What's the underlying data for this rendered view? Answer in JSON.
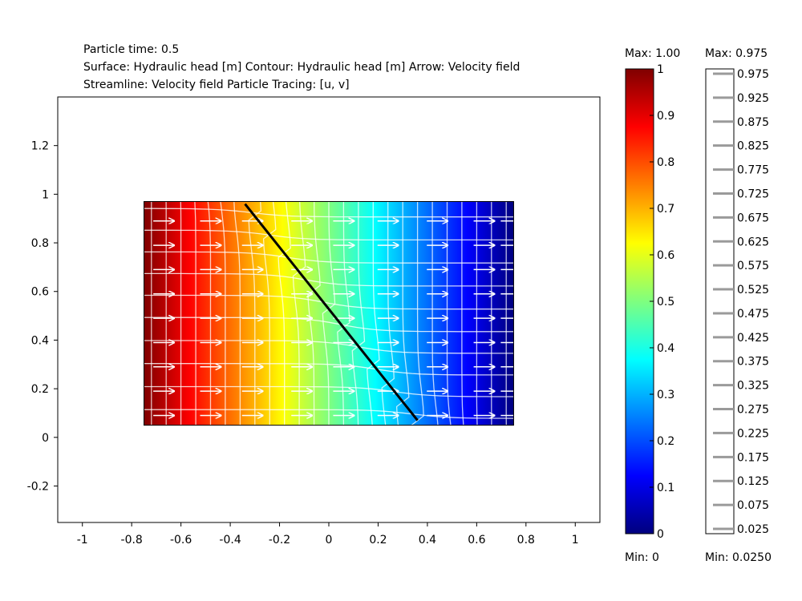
{
  "header": {
    "line1": "Particle time: 0.5",
    "line2": "Surface: Hydraulic head [m]   Contour: Hydraulic head [m]   Arrow: Velocity field",
    "line3": "Streamline: Velocity field   Particle Tracing: [u, v]"
  },
  "chart_data": {
    "type": "heatmap",
    "description_fields": [
      "Particle time: 0.5"
    ],
    "xlim": [
      -1.1,
      1.1
    ],
    "ylim": [
      -0.35,
      1.4
    ],
    "x_ticks": [
      -1,
      -0.8,
      -0.6,
      -0.4,
      -0.2,
      0,
      0.2,
      0.4,
      0.6,
      0.8,
      1
    ],
    "x_tick_labels": [
      "-1",
      "-0.8",
      "-0.6",
      "-0.4",
      "-0.2",
      "0",
      "0.2",
      "0.4",
      "0.6",
      "0.8",
      "1"
    ],
    "y_ticks": [
      -0.2,
      0,
      0.2,
      0.4,
      0.6,
      0.8,
      1,
      1.2
    ],
    "y_tick_labels": [
      "-0.2",
      "0",
      "0.2",
      "0.4",
      "0.6",
      "0.8",
      "1",
      "1.2"
    ],
    "domain": {
      "x": [
        -0.75,
        0.75
      ],
      "y": [
        0.05,
        0.97
      ]
    },
    "surface_field": "Hydraulic head [m]",
    "surface_range": [
      0,
      1
    ],
    "fault_line": {
      "x": [
        -0.34,
        0.36
      ],
      "y": [
        0.96,
        0.07
      ]
    },
    "arrow_grid": {
      "x": [
        -0.67,
        -0.48,
        -0.31,
        -0.11,
        0.06,
        0.24,
        0.44,
        0.63,
        0.74
      ],
      "y": [
        0.09,
        0.19,
        0.29,
        0.39,
        0.49,
        0.59,
        0.69,
        0.79,
        0.89
      ]
    },
    "surface_colorbar": {
      "max_label": "Max: 1.00",
      "min_label": "Min: 0",
      "ticks": [
        0,
        0.1,
        0.2,
        0.3,
        0.4,
        0.5,
        0.6,
        0.7,
        0.8,
        0.9,
        1
      ],
      "tick_labels": [
        "0",
        "0.1",
        "0.2",
        "0.3",
        "0.4",
        "0.5",
        "0.6",
        "0.7",
        "0.8",
        "0.9",
        "1"
      ]
    },
    "contour_colorbar": {
      "max_label": "Max: 0.975",
      "min_label": "Min: 0.0250",
      "levels": [
        0.975,
        0.925,
        0.875,
        0.825,
        0.775,
        0.725,
        0.675,
        0.625,
        0.575,
        0.525,
        0.475,
        0.425,
        0.375,
        0.325,
        0.275,
        0.225,
        0.175,
        0.125,
        0.075,
        0.025
      ],
      "level_labels": [
        "0.975",
        "0.925",
        "0.875",
        "0.825",
        "0.775",
        "0.725",
        "0.675",
        "0.625",
        "0.575",
        "0.525",
        "0.475",
        "0.425",
        "0.375",
        "0.325",
        "0.275",
        "0.225",
        "0.175",
        "0.125",
        "0.075",
        "0.025"
      ]
    },
    "colors": {
      "jet": [
        "#00007f",
        "#0000ff",
        "#007fff",
        "#00ffff",
        "#7fff7f",
        "#ffff00",
        "#ff7f00",
        "#ff0000",
        "#7f0000"
      ],
      "grid_lines": "#ffffff",
      "fault_line": "#000000",
      "frame": "#000000"
    }
  }
}
